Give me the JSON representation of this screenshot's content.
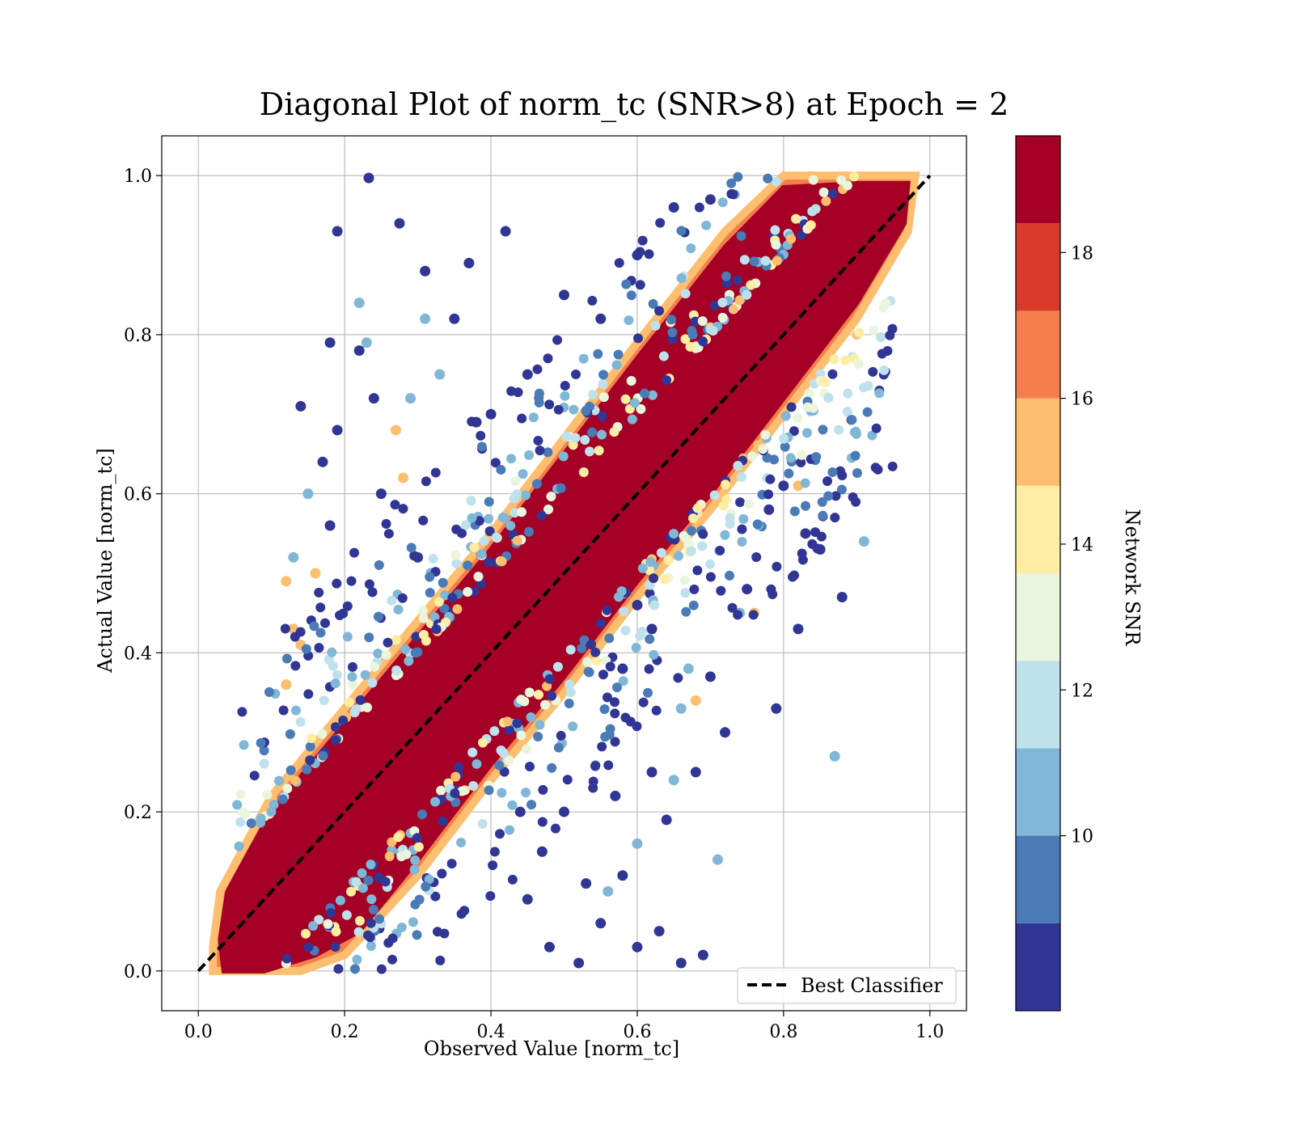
{
  "chart_data": {
    "type": "scatter",
    "title": "Diagonal Plot of norm_tc (SNR>8) at Epoch = 2",
    "xlabel": "Observed Value [norm_tc]",
    "ylabel": "Actual Value [norm_tc]",
    "xlim": [
      -0.05,
      1.05
    ],
    "ylim": [
      -0.05,
      1.05
    ],
    "xticks": [
      "0.0",
      "0.2",
      "0.4",
      "0.6",
      "0.8",
      "1.0"
    ],
    "yticks": [
      "0.0",
      "0.2",
      "0.4",
      "0.6",
      "0.8",
      "1.0"
    ],
    "grid": true,
    "legend": {
      "placement": "lower-right",
      "entries": [
        {
          "label": "Best Classifier",
          "style": "dashed",
          "color": "#000000"
        }
      ]
    },
    "reference_line": {
      "label": "Best Classifier",
      "x": [
        0,
        1
      ],
      "y": [
        0,
        1
      ]
    },
    "colorbar": {
      "label": "Network SNR",
      "range": [
        8,
        20
      ],
      "ticks": [
        "10",
        "12",
        "14",
        "16",
        "18"
      ],
      "bins": [
        {
          "from": 8,
          "to": 9.2,
          "color": "#313695"
        },
        {
          "from": 9.2,
          "to": 10.4,
          "color": "#4a7bb7"
        },
        {
          "from": 10.4,
          "to": 11.6,
          "color": "#80b6d6"
        },
        {
          "from": 11.6,
          "to": 12.8,
          "color": "#bfe1ec"
        },
        {
          "from": 12.8,
          "to": 14.0,
          "color": "#eaf5dd"
        },
        {
          "from": 14.0,
          "to": 15.2,
          "color": "#feeda2"
        },
        {
          "from": 15.2,
          "to": 16.4,
          "color": "#fdbe6f"
        },
        {
          "from": 16.4,
          "to": 17.6,
          "color": "#f47f4c"
        },
        {
          "from": 17.6,
          "to": 18.8,
          "color": "#d73a2a"
        },
        {
          "from": 18.8,
          "to": 20,
          "color": "#a50026"
        }
      ]
    },
    "series": [
      {
        "snr_band": "high (>=18.8)",
        "color": "#a50026",
        "description_points": [
          [
            0.05,
            0.03
          ],
          [
            0.1,
            0.08
          ],
          [
            0.15,
            0.16
          ],
          [
            0.2,
            0.2
          ],
          [
            0.25,
            0.26
          ],
          [
            0.3,
            0.29
          ],
          [
            0.35,
            0.36
          ],
          [
            0.4,
            0.4
          ],
          [
            0.45,
            0.46
          ],
          [
            0.5,
            0.49
          ],
          [
            0.55,
            0.56
          ],
          [
            0.6,
            0.6
          ],
          [
            0.65,
            0.66
          ],
          [
            0.7,
            0.69
          ],
          [
            0.75,
            0.76
          ],
          [
            0.8,
            0.8
          ],
          [
            0.85,
            0.86
          ],
          [
            0.9,
            0.9
          ],
          [
            0.95,
            0.96
          ]
        ]
      },
      {
        "snr_band": "low outliers (8–11)",
        "color": "#313695",
        "points": [
          [
            0.233,
            0.997
          ],
          [
            0.19,
            0.93
          ],
          [
            0.275,
            0.94
          ],
          [
            0.18,
            0.79
          ],
          [
            0.22,
            0.78
          ],
          [
            0.24,
            0.72
          ],
          [
            0.14,
            0.71
          ],
          [
            0.19,
            0.68
          ],
          [
            0.17,
            0.64
          ],
          [
            0.18,
            0.56
          ],
          [
            0.42,
            0.93
          ],
          [
            0.37,
            0.89
          ],
          [
            0.31,
            0.88
          ],
          [
            0.35,
            0.82
          ],
          [
            0.5,
            0.85
          ],
          [
            0.55,
            0.82
          ],
          [
            0.6,
            0.9
          ],
          [
            0.65,
            0.96
          ],
          [
            0.7,
            0.97
          ],
          [
            0.38,
            0.69
          ],
          [
            0.45,
            0.75
          ],
          [
            0.3,
            0.52
          ],
          [
            0.25,
            0.6
          ],
          [
            0.4,
            0.7
          ],
          [
            0.62,
            0.25
          ],
          [
            0.64,
            0.19
          ],
          [
            0.68,
            0.25
          ],
          [
            0.72,
            0.3
          ],
          [
            0.79,
            0.33
          ],
          [
            0.85,
            0.53
          ],
          [
            0.88,
            0.47
          ],
          [
            0.82,
            0.43
          ],
          [
            0.7,
            0.37
          ],
          [
            0.75,
            0.48
          ],
          [
            0.66,
            0.01
          ],
          [
            0.69,
            0.02
          ],
          [
            0.63,
            0.05
          ],
          [
            0.6,
            0.03
          ],
          [
            0.52,
            0.01
          ],
          [
            0.55,
            0.06
          ],
          [
            0.48,
            0.03
          ],
          [
            0.58,
            0.12
          ],
          [
            0.53,
            0.11
          ],
          [
            0.47,
            0.15
          ],
          [
            0.45,
            0.09
          ],
          [
            0.44,
            0.2
          ],
          [
            0.5,
            0.2
          ],
          [
            0.57,
            0.22
          ],
          [
            0.78,
            0.58
          ],
          [
            0.8,
            0.61
          ],
          [
            0.83,
            0.55
          ],
          [
            0.62,
            0.43
          ],
          [
            0.58,
            0.38
          ],
          [
            0.6,
            0.46
          ]
        ]
      },
      {
        "snr_band": "mid (11–14)",
        "color": "#80b6d6",
        "points": [
          [
            0.22,
            0.84
          ],
          [
            0.23,
            0.79
          ],
          [
            0.31,
            0.82
          ],
          [
            0.33,
            0.75
          ],
          [
            0.29,
            0.72
          ],
          [
            0.15,
            0.6
          ],
          [
            0.13,
            0.52
          ],
          [
            0.66,
            0.33
          ],
          [
            0.67,
            0.38
          ],
          [
            0.71,
            0.14
          ],
          [
            0.87,
            0.27
          ],
          [
            0.91,
            0.54
          ],
          [
            0.74,
            0.45
          ],
          [
            0.6,
            0.16
          ],
          [
            0.56,
            0.1
          ],
          [
            0.65,
            0.24
          ]
        ]
      },
      {
        "snr_band": "mid-high (14–17)",
        "color": "#fdbe6f",
        "points": [
          [
            0.12,
            0.49
          ],
          [
            0.13,
            0.43
          ],
          [
            0.16,
            0.5
          ],
          [
            0.27,
            0.68
          ],
          [
            0.28,
            0.62
          ],
          [
            0.12,
            0.36
          ],
          [
            0.14,
            0.41
          ],
          [
            0.68,
            0.34
          ],
          [
            0.76,
            0.45
          ],
          [
            0.82,
            0.61
          ]
        ]
      }
    ]
  }
}
